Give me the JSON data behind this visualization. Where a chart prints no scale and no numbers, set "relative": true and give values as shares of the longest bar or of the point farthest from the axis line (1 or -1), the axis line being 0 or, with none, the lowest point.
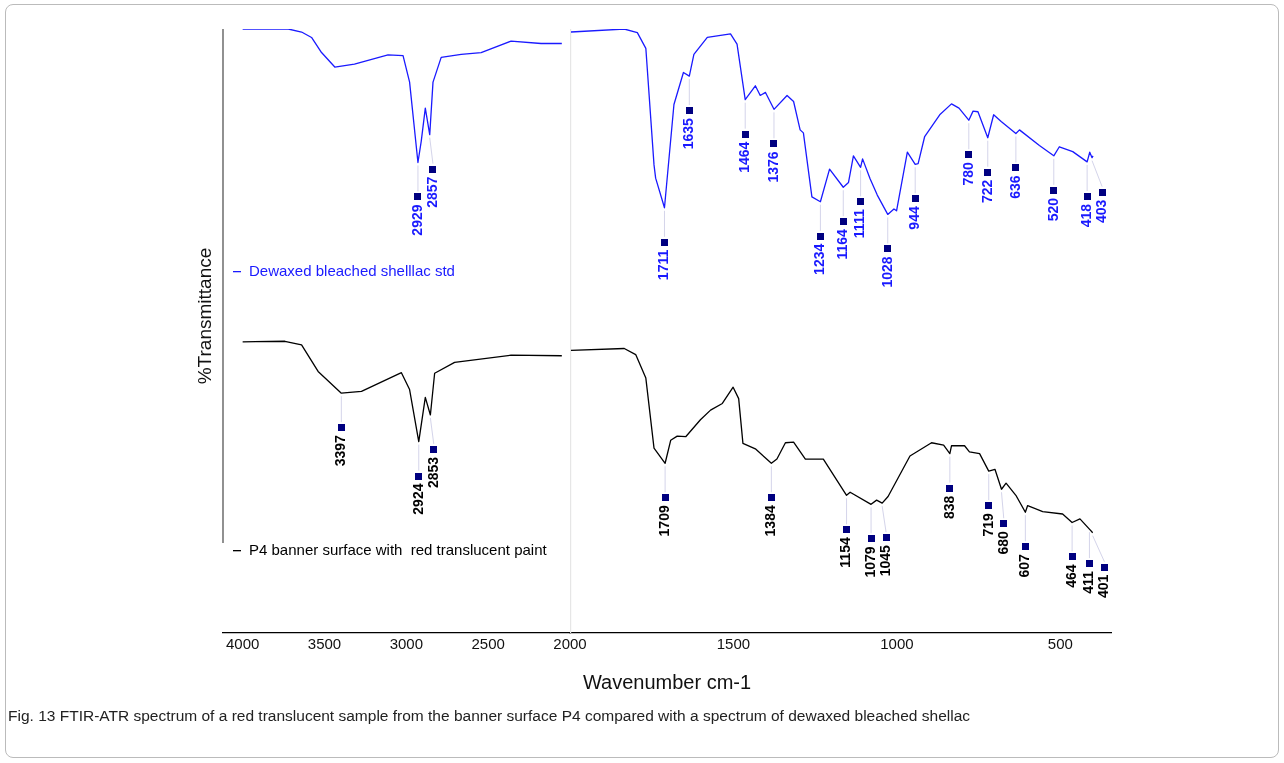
{
  "chart_data": [
    {
      "type": "line",
      "relative": true,
      "ylabel": "%Transmittance",
      "xlim": [
        4120,
        2000
      ],
      "xticks": [
        4000,
        3500,
        3000,
        2500
      ],
      "tick_labels": "x",
      "grid": false,
      "legend": "left",
      "marker": "none",
      "line_style": "solid",
      "series": [
        {
          "name": "Dewaxed bleached shelllac std",
          "color": "#1a1aff",
          "x": [
            4000,
            3721,
            3640,
            3579,
            3518,
            3437,
            3317,
            3112,
            3020,
            2980,
            2929,
            2909,
            2884,
            2857,
            2837,
            2787,
            2665,
            2543,
            2360,
            2177,
            2050
          ],
          "values": [
            1.0,
            1.0,
            0.995,
            0.986,
            0.961,
            0.937,
            0.942,
            0.957,
            0.956,
            0.912,
            0.779,
            0.814,
            0.869,
            0.825,
            0.912,
            0.953,
            0.958,
            0.961,
            0.98,
            0.976,
            0.976
          ]
        },
        {
          "name": "P4 banner surface with  red translucent paint",
          "color": "#000000",
          "x": [
            4000,
            3742,
            3640,
            3539,
            3397,
            3274,
            3030,
            2980,
            2924,
            2884,
            2853,
            2827,
            2705,
            2360,
            2050
          ],
          "values": [
            0.482,
            0.483,
            0.477,
            0.433,
            0.397,
            0.4,
            0.431,
            0.403,
            0.317,
            0.39,
            0.361,
            0.43,
            0.448,
            0.46,
            0.459
          ]
        }
      ],
      "annotations": [
        {
          "text": "2929",
          "x": 2929,
          "y": 0.779
        },
        {
          "text": "2857",
          "x": 2857,
          "y": 0.825
        },
        {
          "text": "3397",
          "x": 3397,
          "y": 0.397
        },
        {
          "text": "2924",
          "x": 2924,
          "y": 0.317
        },
        {
          "text": "2853",
          "x": 2853,
          "y": 0.361
        },
        "Fig. 13 FTIR-ATR spectrum of a red translucent sample from the banner surface P4 compared with a spectrum of dewaxed bleached shellac"
      ]
    },
    {
      "type": "line",
      "relative": true,
      "xlabel": "Wavenumber cm-1",
      "xlim": [
        2000,
        345
      ],
      "xticks": [
        2000,
        1500,
        1000,
        500
      ],
      "tick_labels": "x",
      "grid": false,
      "marker": "none",
      "line_style": "solid",
      "ref_lines": [
        {
          "axis": "x",
          "value": 2000,
          "color": "#e6e6e6"
        }
      ],
      "series": [
        {
          "color": "#1a1aff",
          "x": [
            1997,
            1834,
            1794,
            1768,
            1743,
            1738,
            1711,
            1682,
            1653,
            1635,
            1621,
            1580,
            1509,
            1489,
            1464,
            1433,
            1418,
            1402,
            1376,
            1336,
            1316,
            1296,
            1286,
            1260,
            1234,
            1206,
            1164,
            1148,
            1133,
            1111,
            1105,
            1082,
            1060,
            1028,
            1009,
            1001,
            968,
            944,
            935,
            915,
            869,
            833,
            810,
            780,
            767,
            752,
            722,
            704,
            681,
            636,
            625,
            564,
            520,
            503,
            462,
            418,
            410,
            403,
            400
          ],
          "values": [
            0.995,
            1.0,
            0.994,
            0.968,
            0.775,
            0.753,
            0.704,
            0.875,
            0.928,
            0.922,
            0.958,
            0.986,
            0.992,
            0.975,
            0.883,
            0.906,
            0.89,
            0.895,
            0.867,
            0.89,
            0.88,
            0.833,
            0.828,
            0.722,
            0.714,
            0.768,
            0.738,
            0.746,
            0.79,
            0.771,
            0.785,
            0.752,
            0.725,
            0.693,
            0.702,
            0.699,
            0.796,
            0.776,
            0.777,
            0.822,
            0.858,
            0.876,
            0.869,
            0.849,
            0.864,
            0.863,
            0.82,
            0.858,
            0.847,
            0.827,
            0.833,
            0.807,
            0.79,
            0.805,
            0.797,
            0.78,
            0.796,
            0.787,
            0.79
          ]
        },
        {
          "color": "#000000",
          "x": [
            1997,
            1834,
            1799,
            1768,
            1743,
            1709,
            1692,
            1672,
            1646,
            1601,
            1570,
            1534,
            1501,
            1484,
            1471,
            1433,
            1384,
            1367,
            1341,
            1316,
            1280,
            1225,
            1154,
            1143,
            1079,
            1062,
            1045,
            1027,
            960,
            894,
            857,
            838,
            833,
            793,
            778,
            747,
            719,
            700,
            680,
            666,
            636,
            607,
            600,
            554,
            493,
            464,
            440,
            411,
            401
          ],
          "values": [
            0.468,
            0.471,
            0.461,
            0.422,
            0.306,
            0.281,
            0.319,
            0.326,
            0.325,
            0.353,
            0.369,
            0.38,
            0.407,
            0.388,
            0.314,
            0.305,
            0.281,
            0.288,
            0.315,
            0.316,
            0.288,
            0.288,
            0.228,
            0.233,
            0.213,
            0.22,
            0.215,
            0.226,
            0.293,
            0.315,
            0.311,
            0.297,
            0.31,
            0.31,
            0.3,
            0.297,
            0.268,
            0.271,
            0.238,
            0.248,
            0.228,
            0.2,
            0.211,
            0.201,
            0.197,
            0.183,
            0.189,
            0.172,
            0.166
          ]
        }
      ],
      "annotations": [
        {
          "text": "1711",
          "x": 1711,
          "y": 0.704
        },
        {
          "text": "1635",
          "x": 1635,
          "y": 0.922
        },
        {
          "text": "1464",
          "x": 1464,
          "y": 0.883
        },
        {
          "text": "1376",
          "x": 1376,
          "y": 0.867
        },
        {
          "text": "1234",
          "x": 1234,
          "y": 0.714
        },
        {
          "text": "1164",
          "x": 1164,
          "y": 0.738
        },
        {
          "text": "1111",
          "x": 1111,
          "y": 0.771
        },
        {
          "text": "1028",
          "x": 1028,
          "y": 0.693
        },
        {
          "text": "944",
          "x": 944,
          "y": 0.776
        },
        {
          "text": "780",
          "x": 780,
          "y": 0.849
        },
        {
          "text": "722",
          "x": 722,
          "y": 0.82
        },
        {
          "text": "636",
          "x": 636,
          "y": 0.827
        },
        {
          "text": "520",
          "x": 520,
          "y": 0.79
        },
        {
          "text": "418",
          "x": 418,
          "y": 0.78
        },
        {
          "text": "403",
          "x": 403,
          "y": 0.787
        },
        {
          "text": "1709",
          "x": 1709,
          "y": 0.281
        },
        {
          "text": "1384",
          "x": 1384,
          "y": 0.281
        },
        {
          "text": "1154",
          "x": 1154,
          "y": 0.228
        },
        {
          "text": "1079",
          "x": 1079,
          "y": 0.213
        },
        {
          "text": "1045",
          "x": 1045,
          "y": 0.215
        },
        {
          "text": "838",
          "x": 838,
          "y": 0.297
        },
        {
          "text": "719",
          "x": 719,
          "y": 0.268
        },
        {
          "text": "680",
          "x": 680,
          "y": 0.238
        },
        {
          "text": "607",
          "x": 607,
          "y": 0.2
        },
        {
          "text": "464",
          "x": 464,
          "y": 0.183
        },
        {
          "text": "411",
          "x": 411,
          "y": 0.172
        },
        {
          "text": "401",
          "x": 401,
          "y": 0.166
        }
      ]
    }
  ]
}
